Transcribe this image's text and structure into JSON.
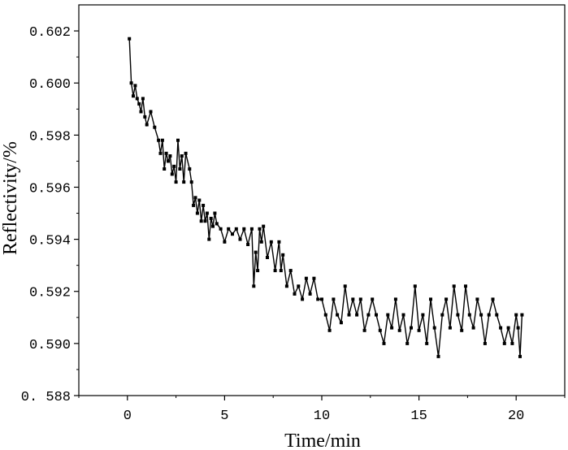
{
  "chart_data": {
    "type": "line",
    "xlabel": "Time/min",
    "ylabel": "Reflectivity/%",
    "xlim": [
      -2.5,
      22.5
    ],
    "ylim": [
      0.588,
      0.603
    ],
    "x_ticks": [
      0,
      5,
      10,
      15,
      20
    ],
    "x_tick_labels": [
      "0",
      "5",
      "10",
      "15",
      "20"
    ],
    "y_ticks": [
      0.588,
      0.59,
      0.592,
      0.594,
      0.596,
      0.598,
      0.6,
      0.602
    ],
    "y_tick_labels": [
      "0. 588",
      "0.590",
      "0.592",
      "0.594",
      "0.596",
      "0.598",
      "0.600",
      "0.602"
    ],
    "grid": false,
    "marker": "square",
    "color": "#000000",
    "series": [
      {
        "x": [
          0.1,
          0.2,
          0.3,
          0.4,
          0.5,
          0.6,
          0.7,
          0.8,
          0.9,
          1.0,
          1.2,
          1.4,
          1.6,
          1.7,
          1.8,
          1.9,
          2.0,
          2.1,
          2.2,
          2.3,
          2.4,
          2.5,
          2.6,
          2.7,
          2.8,
          2.9,
          3.0,
          3.2,
          3.3,
          3.4,
          3.5,
          3.6,
          3.7,
          3.8,
          3.9,
          4.0,
          4.1,
          4.2,
          4.3,
          4.4,
          4.5,
          4.6,
          4.8,
          5.0,
          5.2,
          5.4,
          5.6,
          5.8,
          6.0,
          6.2,
          6.4,
          6.5,
          6.6,
          6.7,
          6.8,
          6.9,
          7.0,
          7.2,
          7.4,
          7.6,
          7.8,
          7.9,
          8.0,
          8.2,
          8.4,
          8.6,
          8.8,
          9.0,
          9.2,
          9.4,
          9.6,
          9.8,
          10.0,
          10.2,
          10.4,
          10.6,
          10.8,
          11.0,
          11.2,
          11.4,
          11.6,
          11.8,
          12.0,
          12.2,
          12.4,
          12.6,
          12.8,
          13.0,
          13.2,
          13.4,
          13.6,
          13.8,
          14.0,
          14.2,
          14.4,
          14.6,
          14.8,
          15.0,
          15.2,
          15.4,
          15.6,
          15.8,
          16.0,
          16.2,
          16.4,
          16.6,
          16.8,
          17.0,
          17.2,
          17.4,
          17.6,
          17.8,
          18.0,
          18.2,
          18.4,
          18.6,
          18.8,
          19.0,
          19.2,
          19.4,
          19.6,
          19.8,
          20.0,
          20.1,
          20.2,
          20.3
        ],
        "y": [
          0.6017,
          0.6,
          0.5995,
          0.5999,
          0.5994,
          0.5992,
          0.5989,
          0.5994,
          0.5987,
          0.5984,
          0.5989,
          0.5983,
          0.5978,
          0.5973,
          0.5978,
          0.5967,
          0.5973,
          0.597,
          0.5972,
          0.5965,
          0.5968,
          0.5962,
          0.5978,
          0.5967,
          0.5972,
          0.5962,
          0.5973,
          0.5967,
          0.5962,
          0.5953,
          0.5956,
          0.595,
          0.5955,
          0.5947,
          0.5953,
          0.5947,
          0.595,
          0.594,
          0.5948,
          0.5945,
          0.595,
          0.5946,
          0.5944,
          0.5939,
          0.5944,
          0.5942,
          0.5944,
          0.594,
          0.5944,
          0.5938,
          0.5944,
          0.5922,
          0.5935,
          0.5928,
          0.5944,
          0.5939,
          0.5945,
          0.5933,
          0.5939,
          0.5928,
          0.5939,
          0.5928,
          0.5934,
          0.5922,
          0.5928,
          0.5919,
          0.5922,
          0.5917,
          0.5925,
          0.5919,
          0.5925,
          0.5917,
          0.5917,
          0.5911,
          0.5905,
          0.5917,
          0.5911,
          0.5908,
          0.5922,
          0.5911,
          0.5917,
          0.5911,
          0.5917,
          0.5905,
          0.5911,
          0.5917,
          0.5911,
          0.5905,
          0.59,
          0.5911,
          0.5906,
          0.5917,
          0.5905,
          0.5911,
          0.59,
          0.5906,
          0.5922,
          0.5905,
          0.5911,
          0.59,
          0.5917,
          0.5906,
          0.5895,
          0.5911,
          0.5917,
          0.5906,
          0.5922,
          0.5911,
          0.5905,
          0.5922,
          0.5911,
          0.5906,
          0.5917,
          0.5911,
          0.59,
          0.5911,
          0.5917,
          0.5911,
          0.5906,
          0.59,
          0.5906,
          0.59,
          0.5911,
          0.5906,
          0.5895,
          0.5911
        ]
      }
    ]
  }
}
